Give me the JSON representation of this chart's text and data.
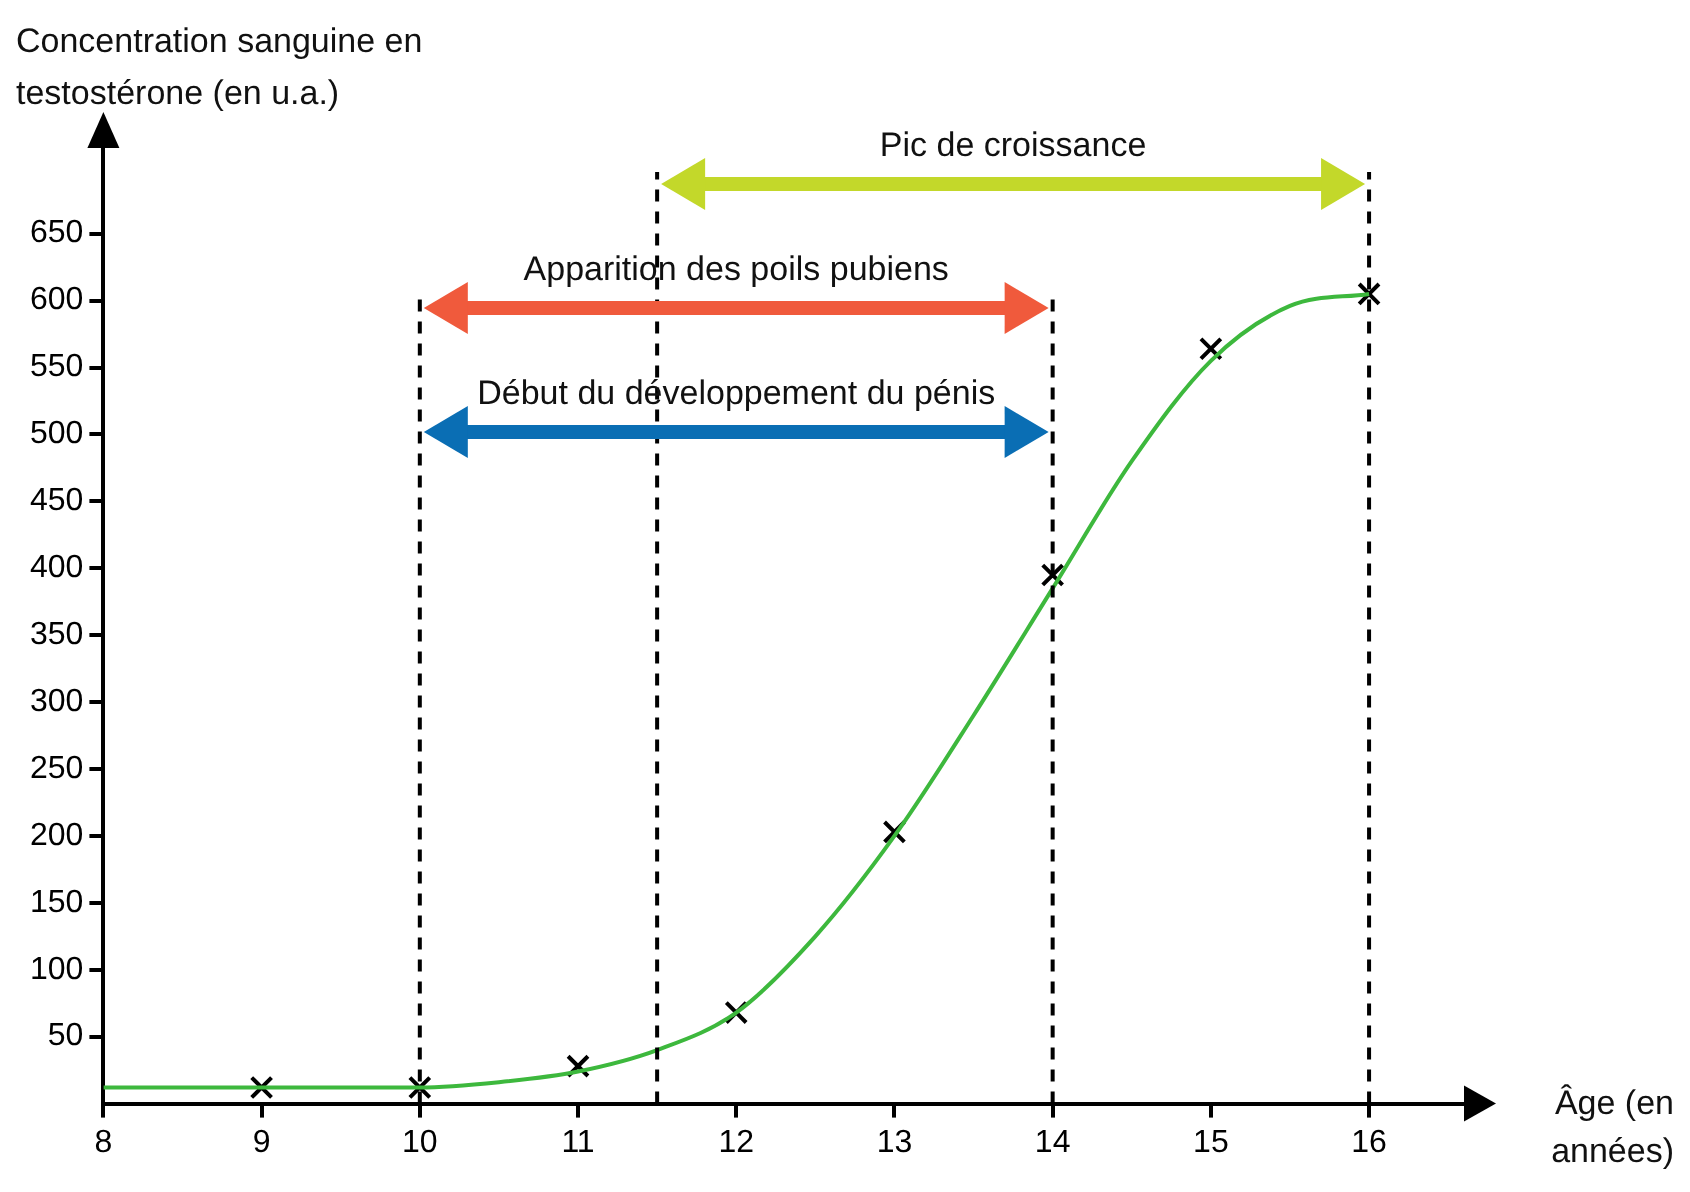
{
  "chart_data": {
    "type": "line",
    "ylabel": "Concentration sanguine en testostérone (en u.a.)",
    "xlabel": "Âge (en années)",
    "xlim": [
      8,
      16.6
    ],
    "ylim": [
      0,
      720
    ],
    "xticks": [
      8,
      9,
      10,
      11,
      12,
      13,
      14,
      15,
      16
    ],
    "yticks": [
      50,
      100,
      150,
      200,
      250,
      300,
      350,
      400,
      450,
      500,
      550,
      600,
      650
    ],
    "grid": false,
    "legend": false,
    "series": [
      {
        "type": "line",
        "color": "#3db83d",
        "marker": "none",
        "x": [
          8,
          9,
          10,
          10.5,
          11,
          11.5,
          12,
          12.5,
          13,
          13.5,
          14,
          14.5,
          15,
          15.5,
          16
        ],
        "values": [
          12,
          12,
          12,
          16,
          24,
          40,
          68,
          125,
          200,
          290,
          385,
          480,
          555,
          596,
          605
        ]
      },
      {
        "type": "scatter",
        "color": "#000000",
        "marker": "cross",
        "x": [
          9,
          10,
          11,
          12,
          13,
          14,
          15,
          16
        ],
        "values": [
          12,
          12,
          28,
          68,
          203,
          395,
          564,
          605
        ]
      }
    ],
    "ref_lines": [
      {
        "axis": "x",
        "value": 10,
        "color": "#000000",
        "line_style": "dashed"
      },
      {
        "axis": "x",
        "value": 11.5,
        "color": "#000000",
        "line_style": "dashed"
      },
      {
        "axis": "x",
        "value": 14,
        "color": "#000000",
        "line_style": "dashed"
      },
      {
        "axis": "x",
        "value": 16,
        "color": "#000000",
        "line_style": "dashed"
      }
    ],
    "annotations": [
      "Pic de croissance",
      "Apparition des poils pubiens",
      "Début du développement du pénis"
    ]
  }
}
